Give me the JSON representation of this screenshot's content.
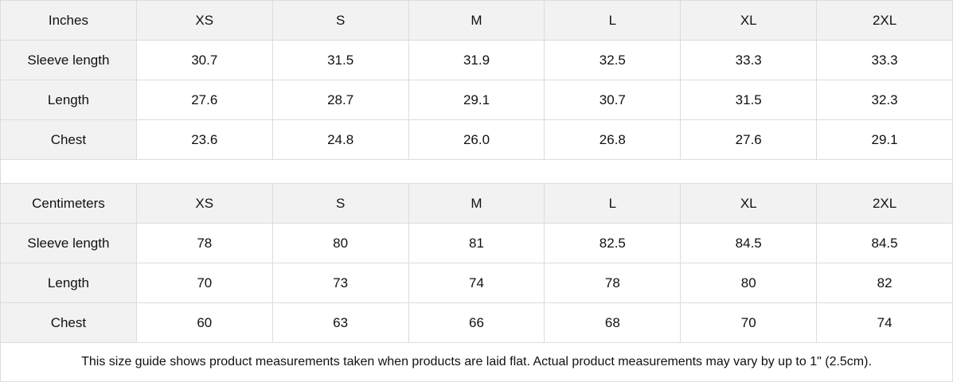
{
  "inches": {
    "header": [
      "Inches",
      "XS",
      "S",
      "M",
      "L",
      "XL",
      "2XL"
    ],
    "rows": [
      [
        "Sleeve length",
        "30.7",
        "31.5",
        "31.9",
        "32.5",
        "33.3",
        "33.3"
      ],
      [
        "Length",
        "27.6",
        "28.7",
        "29.1",
        "30.7",
        "31.5",
        "32.3"
      ],
      [
        "Chest",
        "23.6",
        "24.8",
        "26.0",
        "26.8",
        "27.6",
        "29.1"
      ]
    ]
  },
  "centimeters": {
    "header": [
      "Centimeters",
      "XS",
      "S",
      "M",
      "L",
      "XL",
      "2XL"
    ],
    "rows": [
      [
        "Sleeve length",
        "78",
        "80",
        "81",
        "82.5",
        "84.5",
        "84.5"
      ],
      [
        "Length",
        "70",
        "73",
        "74",
        "78",
        "80",
        "82"
      ],
      [
        "Chest",
        "60",
        "63",
        "66",
        "68",
        "70",
        "74"
      ]
    ]
  },
  "note": "This size guide shows product measurements taken when products are laid flat.  Actual product measurements may vary by up to 1\" (2.5cm)."
}
